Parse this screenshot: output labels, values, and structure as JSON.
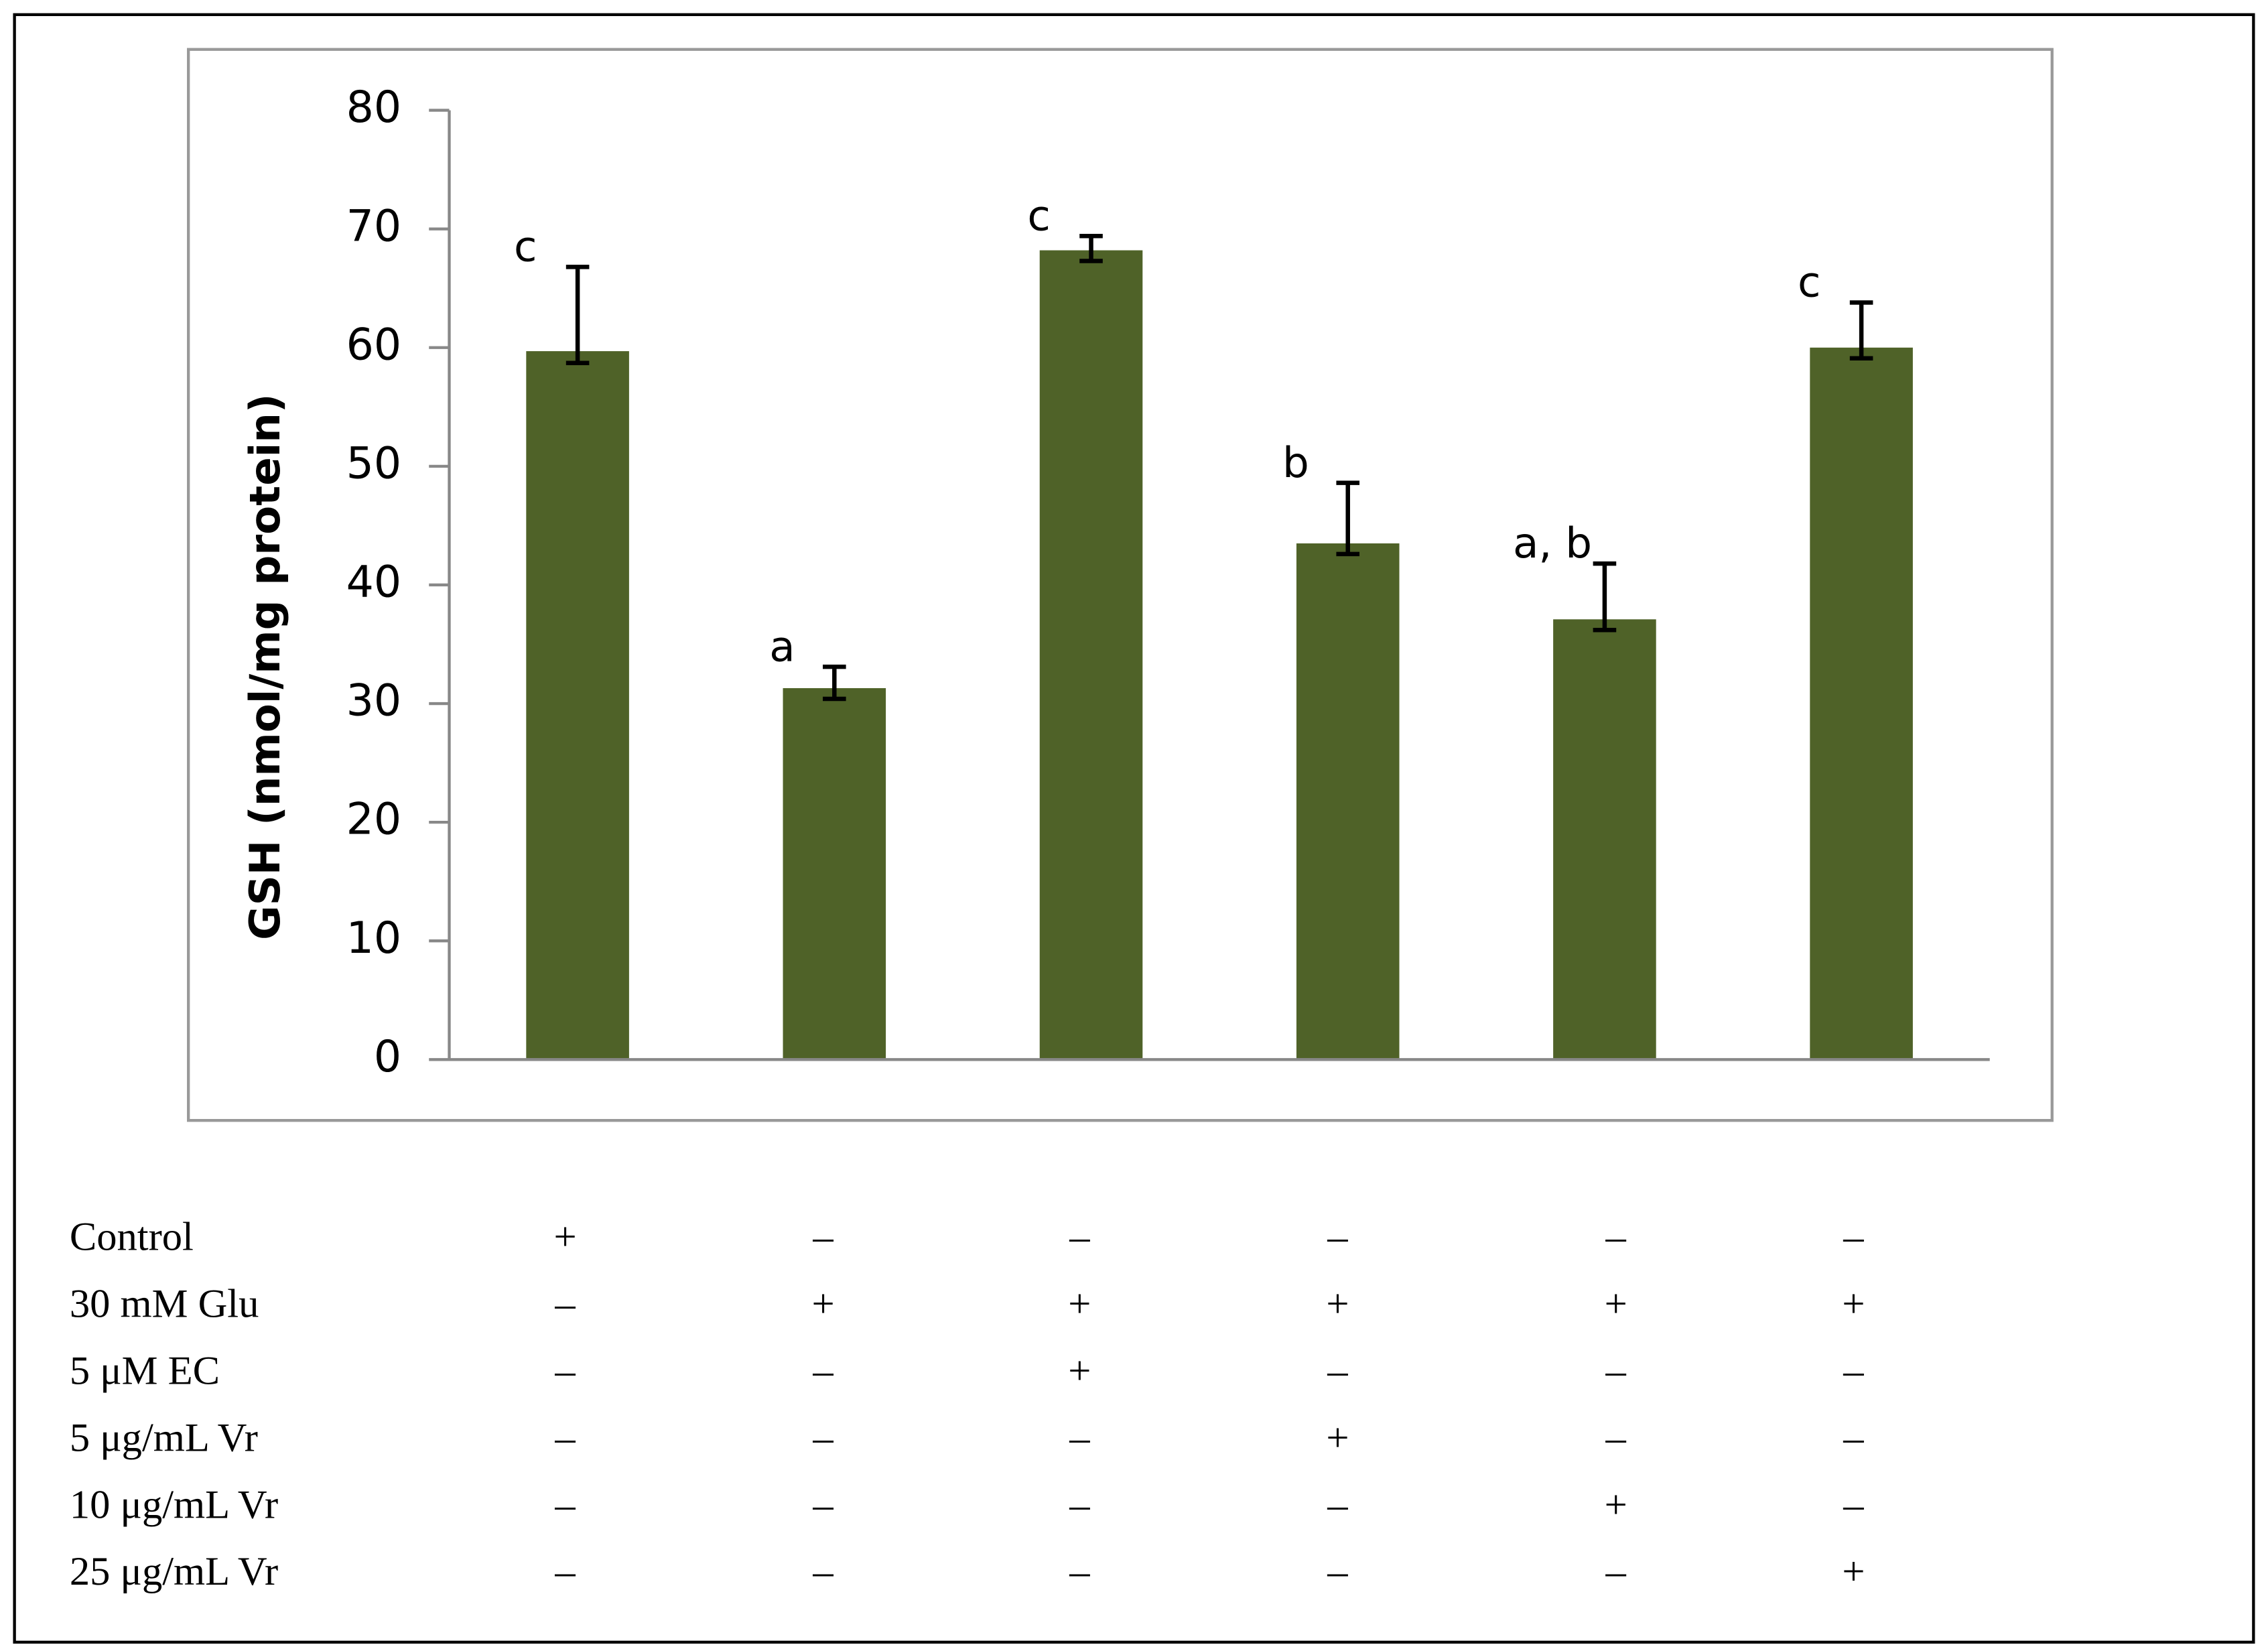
{
  "chart_data": {
    "type": "bar",
    "y_label": "GSH (nmol/mg protein)",
    "categories": [
      null,
      null,
      null,
      null,
      null,
      null
    ],
    "values": [
      59.7,
      31.3,
      68.2,
      43.5,
      37.1,
      60.0
    ],
    "errors_upper": [
      7.1,
      1.8,
      1.2,
      5.1,
      4.7,
      3.8
    ],
    "errors_lower": [
      1.0,
      0.9,
      0.9,
      0.9,
      0.9,
      0.9
    ],
    "annotations": [
      "c",
      "a",
      "c",
      "b",
      "a, b",
      "c"
    ],
    "color": "#4f6228",
    "ylim": [
      0,
      80
    ],
    "yticks": [
      0,
      10,
      20,
      30,
      40,
      50,
      60,
      70,
      80
    ],
    "grid": false
  },
  "treatment_table": {
    "rows": [
      {
        "label": "Control",
        "cells": [
          "+",
          "–",
          "–",
          "–",
          "–",
          "–"
        ]
      },
      {
        "label": "30 mM Glu",
        "cells": [
          "–",
          "+",
          "+",
          "+",
          "+",
          "+"
        ]
      },
      {
        "label": "5 μM EC",
        "cells": [
          "–",
          "–",
          "+",
          "–",
          "–",
          "–"
        ]
      },
      {
        "label": "5 μg/mL Vr",
        "cells": [
          "–",
          "–",
          "–",
          "+",
          "–",
          "–"
        ]
      },
      {
        "label": "10 μg/mL Vr",
        "cells": [
          "–",
          "–",
          "–",
          "–",
          "+",
          "–"
        ]
      },
      {
        "label": "25 μg/mL Vr",
        "cells": [
          "–",
          "–",
          "–",
          "–",
          "–",
          "+"
        ]
      }
    ]
  }
}
